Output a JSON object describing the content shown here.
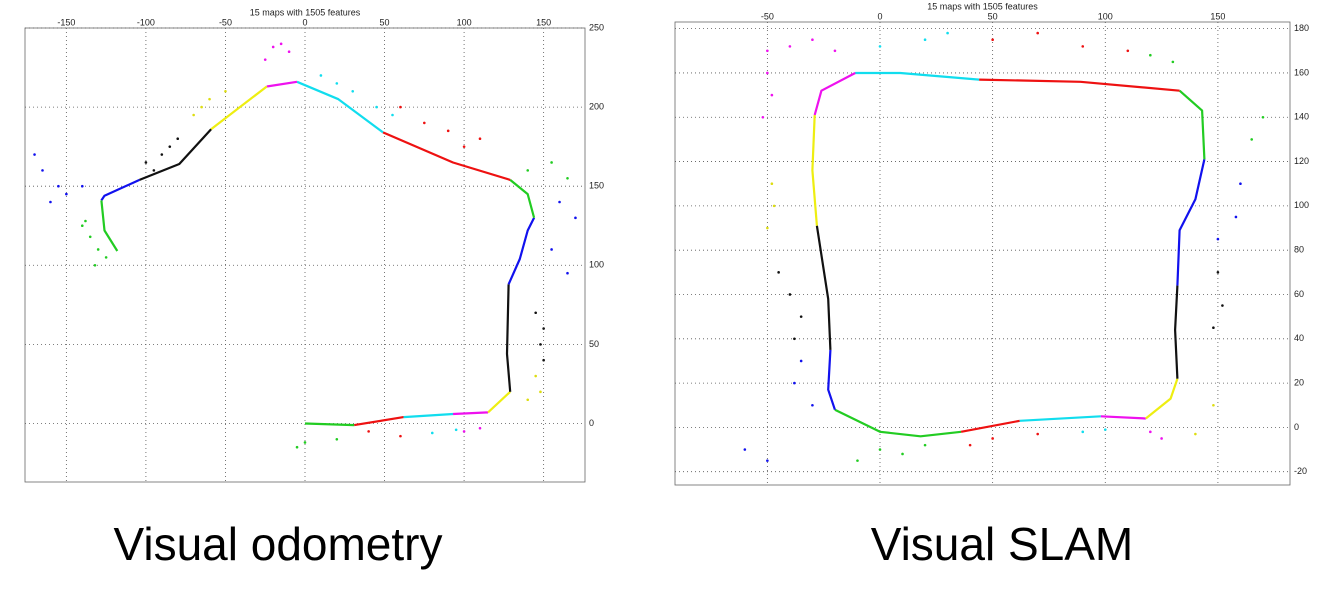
{
  "chart_data": [
    {
      "type": "line",
      "title": "15 maps with 1505 features",
      "caption": "Visual odometry",
      "xlim": [
        -176,
        176
      ],
      "ylim": [
        -37,
        250
      ],
      "xticks": [
        -150,
        -100,
        -50,
        0,
        50,
        100,
        150
      ],
      "yticks": [
        0,
        50,
        100,
        150,
        200,
        250
      ],
      "grid": true,
      "series": [
        {
          "color": "#22cc22",
          "x": [
            0,
            31
          ],
          "y": [
            0,
            -1
          ]
        },
        {
          "color": "#ee1111",
          "x": [
            31,
            62
          ],
          "y": [
            -1,
            4
          ]
        },
        {
          "color": "#11ddee",
          "x": [
            62,
            93
          ],
          "y": [
            4,
            6
          ]
        },
        {
          "color": "#ee11ee",
          "x": [
            93,
            115
          ],
          "y": [
            6,
            7
          ]
        },
        {
          "color": "#eeee11",
          "x": [
            115,
            129
          ],
          "y": [
            7,
            20
          ]
        },
        {
          "color": "#111111",
          "x": [
            129,
            127,
            128
          ],
          "y": [
            20,
            44,
            88
          ]
        },
        {
          "color": "#1111ee",
          "x": [
            128,
            135,
            140,
            144
          ],
          "y": [
            88,
            104,
            122,
            130
          ]
        },
        {
          "color": "#22cc22",
          "x": [
            144,
            140,
            129
          ],
          "y": [
            130,
            145,
            154
          ]
        },
        {
          "color": "#ee1111",
          "x": [
            129,
            93,
            49
          ],
          "y": [
            154,
            165,
            184
          ]
        },
        {
          "color": "#11ddee",
          "x": [
            49,
            21,
            -5
          ],
          "y": [
            184,
            205,
            216
          ]
        },
        {
          "color": "#ee11ee",
          "x": [
            -5,
            -24
          ],
          "y": [
            216,
            213
          ]
        },
        {
          "color": "#eeee11",
          "x": [
            -24,
            -59
          ],
          "y": [
            213,
            186
          ]
        },
        {
          "color": "#111111",
          "x": [
            -59,
            -79,
            -104
          ],
          "y": [
            186,
            164,
            154
          ]
        },
        {
          "color": "#1111ee",
          "x": [
            -104,
            -126,
            -128
          ],
          "y": [
            154,
            144,
            141
          ]
        },
        {
          "color": "#22cc22",
          "x": [
            -128,
            -126,
            -118
          ],
          "y": [
            141,
            122,
            109
          ]
        },
        {
          "color": "#22cc22",
          "mode": "markers",
          "x": [
            -140,
            -135,
            -130,
            -138,
            -125,
            -132,
            140,
            155,
            165,
            0,
            20,
            -5
          ],
          "y": [
            125,
            118,
            110,
            128,
            105,
            100,
            160,
            165,
            155,
            -12,
            -10,
            -15
          ]
        },
        {
          "color": "#1111ee",
          "mode": "markers",
          "x": [
            -165,
            -155,
            -150,
            -160,
            -140,
            -170,
            160,
            170,
            155,
            165
          ],
          "y": [
            160,
            150,
            145,
            140,
            150,
            170,
            140,
            130,
            110,
            95
          ]
        },
        {
          "color": "#111111",
          "mode": "markers",
          "x": [
            -100,
            -90,
            -85,
            -95,
            -80,
            145,
            150,
            148,
            150
          ],
          "y": [
            165,
            170,
            175,
            160,
            180,
            70,
            60,
            50,
            40
          ]
        },
        {
          "color": "#dddd11",
          "mode": "markers",
          "x": [
            -70,
            -60,
            -50,
            -65,
            145,
            148,
            140
          ],
          "y": [
            195,
            205,
            210,
            200,
            30,
            20,
            15
          ]
        },
        {
          "color": "#ee11ee",
          "mode": "markers",
          "x": [
            -25,
            -15,
            -10,
            -20,
            100,
            110
          ],
          "y": [
            230,
            240,
            235,
            238,
            -5,
            -3
          ]
        },
        {
          "color": "#11ddee",
          "mode": "markers",
          "x": [
            10,
            30,
            45,
            20,
            55,
            80,
            95
          ],
          "y": [
            220,
            210,
            200,
            215,
            195,
            -6,
            -4
          ]
        },
        {
          "color": "#ee1111",
          "mode": "markers",
          "x": [
            60,
            90,
            110,
            75,
            100,
            40,
            60
          ],
          "y": [
            200,
            185,
            180,
            190,
            175,
            -5,
            -8
          ]
        }
      ]
    },
    {
      "type": "line",
      "title": "15 maps with 1505 features",
      "caption": "Visual SLAM",
      "xlim": [
        -91,
        182
      ],
      "ylim": [
        -26,
        183
      ],
      "xticks": [
        -50,
        0,
        50,
        100,
        150
      ],
      "yticks": [
        -20,
        0,
        20,
        40,
        60,
        80,
        100,
        120,
        140,
        160,
        180
      ],
      "grid": true,
      "series": [
        {
          "color": "#22cc22",
          "x": [
            -20,
            0,
            18,
            36
          ],
          "y": [
            8,
            -2,
            -4,
            -2
          ]
        },
        {
          "color": "#ee1111",
          "x": [
            36,
            62
          ],
          "y": [
            -2,
            3
          ]
        },
        {
          "color": "#11ddee",
          "x": [
            62,
            98
          ],
          "y": [
            3,
            5
          ]
        },
        {
          "color": "#ee11ee",
          "x": [
            98,
            118
          ],
          "y": [
            5,
            4
          ]
        },
        {
          "color": "#eeee11",
          "x": [
            118,
            129,
            132
          ],
          "y": [
            4,
            13,
            22
          ]
        },
        {
          "color": "#111111",
          "x": [
            132,
            131,
            132
          ],
          "y": [
            22,
            44,
            64
          ]
        },
        {
          "color": "#1111ee",
          "x": [
            132,
            133,
            140,
            144
          ],
          "y": [
            64,
            89,
            103,
            121
          ]
        },
        {
          "color": "#22cc22",
          "x": [
            144,
            143,
            133
          ],
          "y": [
            121,
            143,
            152
          ]
        },
        {
          "color": "#ee1111",
          "x": [
            133,
            89,
            44
          ],
          "y": [
            152,
            156,
            157
          ]
        },
        {
          "color": "#11ddee",
          "x": [
            44,
            9,
            -11
          ],
          "y": [
            157,
            160,
            160
          ]
        },
        {
          "color": "#ee11ee",
          "x": [
            -11,
            -26,
            -29
          ],
          "y": [
            160,
            152,
            141
          ]
        },
        {
          "color": "#eeee11",
          "x": [
            -29,
            -30,
            -28
          ],
          "y": [
            141,
            116,
            91
          ]
        },
        {
          "color": "#111111",
          "x": [
            -28,
            -23,
            -22
          ],
          "y": [
            91,
            58,
            35
          ]
        },
        {
          "color": "#1111ee",
          "x": [
            -22,
            -23,
            -20
          ],
          "y": [
            35,
            17,
            8
          ]
        },
        {
          "color": "#ee11ee",
          "mode": "markers",
          "x": [
            -50,
            -40,
            -30,
            -20,
            -50,
            -48,
            -52,
            120,
            125
          ],
          "y": [
            170,
            172,
            175,
            170,
            160,
            150,
            140,
            -2,
            -5
          ]
        },
        {
          "color": "#11ddee",
          "mode": "markers",
          "x": [
            0,
            20,
            30,
            90,
            100
          ],
          "y": [
            172,
            175,
            178,
            -2,
            -1
          ]
        },
        {
          "color": "#ee1111",
          "mode": "markers",
          "x": [
            50,
            70,
            90,
            110,
            50,
            70,
            40
          ],
          "y": [
            175,
            178,
            172,
            170,
            -5,
            -3,
            -8
          ]
        },
        {
          "color": "#22cc22",
          "mode": "markers",
          "x": [
            120,
            130,
            0,
            10,
            20,
            -10,
            165,
            170
          ],
          "y": [
            168,
            165,
            -10,
            -12,
            -8,
            -15,
            130,
            140
          ]
        },
        {
          "color": "#dddd11",
          "mode": "markers",
          "x": [
            -48,
            -50,
            -47,
            140,
            148
          ],
          "y": [
            110,
            90,
            100,
            -3,
            10
          ]
        },
        {
          "color": "#111111",
          "mode": "markers",
          "x": [
            -45,
            -40,
            -35,
            -38,
            150,
            152,
            148
          ],
          "y": [
            70,
            60,
            50,
            40,
            70,
            55,
            45
          ]
        },
        {
          "color": "#1111ee",
          "mode": "markers",
          "x": [
            -35,
            -38,
            -30,
            -60,
            -50,
            160,
            158,
            150
          ],
          "y": [
            30,
            20,
            10,
            -10,
            -15,
            110,
            95,
            85
          ]
        }
      ]
    }
  ]
}
